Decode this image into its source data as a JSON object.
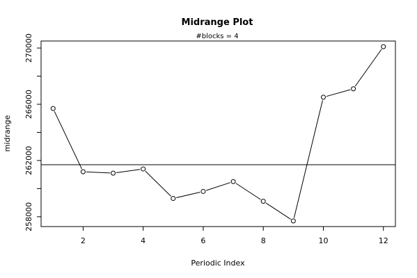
{
  "chart_data": {
    "type": "line",
    "title": "Midrange Plot",
    "subtitle": "#blocks =  4",
    "xlabel": "Periodic Index",
    "ylabel": "midrange",
    "x": [
      1,
      2,
      3,
      4,
      5,
      6,
      7,
      8,
      9,
      10,
      11,
      12
    ],
    "y": [
      265700,
      261200,
      261100,
      261400,
      259300,
      259800,
      260500,
      259100,
      257700,
      266500,
      267100,
      270100
    ],
    "reference_line": 261700,
    "xticks": [
      2,
      4,
      6,
      8,
      10,
      12
    ],
    "yticks": [
      258000,
      262000,
      266000,
      270000
    ],
    "xlim": [
      0.6,
      12.4
    ],
    "ylim": [
      257300,
      270500
    ],
    "grid": false,
    "point_marker": "open-circle"
  }
}
